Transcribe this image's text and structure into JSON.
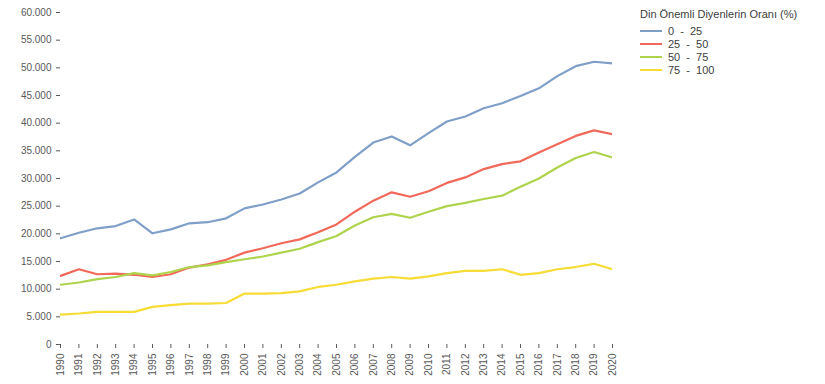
{
  "chart_data": {
    "type": "line",
    "legend_title": "Din Önemli Diyenlerin Oranı (%)",
    "legend": "right",
    "grid": false,
    "x": [
      1990,
      1991,
      1992,
      1993,
      1994,
      1995,
      1996,
      1997,
      1998,
      1999,
      2000,
      2001,
      2002,
      2003,
      2004,
      2005,
      2006,
      2007,
      2008,
      2009,
      2010,
      2011,
      2012,
      2013,
      2014,
      2015,
      2016,
      2017,
      2018,
      2019,
      2020
    ],
    "xlim": [
      1990,
      2020
    ],
    "xticks": [
      1990,
      1991,
      1992,
      1993,
      1994,
      1995,
      1996,
      1997,
      1998,
      1999,
      2000,
      2001,
      2002,
      2003,
      2004,
      2005,
      2006,
      2007,
      2008,
      2009,
      2010,
      2011,
      2012,
      2013,
      2014,
      2015,
      2016,
      2017,
      2018,
      2019,
      2020
    ],
    "ylim": [
      0,
      60000
    ],
    "yticks": [
      0,
      {
        "value": 5000,
        "label": "5.000"
      },
      {
        "value": 10000,
        "label": "10.000"
      },
      {
        "value": 15000,
        "label": "15.000"
      },
      {
        "value": 20000,
        "label": "20.000"
      },
      {
        "value": 25000,
        "label": "25.000"
      },
      {
        "value": 30000,
        "label": "30.000"
      },
      {
        "value": 35000,
        "label": "35.000"
      },
      {
        "value": 40000,
        "label": "40.000"
      },
      {
        "value": 45000,
        "label": "45.000"
      },
      {
        "value": 50000,
        "label": "50.000"
      },
      {
        "value": 55000,
        "label": "55.000"
      },
      {
        "value": 60000,
        "label": "60.000"
      }
    ],
    "series": [
      {
        "name": "0  -  25",
        "color": "#7f9fc9",
        "values": [
          19200,
          20200,
          21000,
          21400,
          22600,
          20100,
          20800,
          21900,
          22100,
          22800,
          24600,
          25300,
          26200,
          27300,
          29300,
          31100,
          33900,
          36500,
          37600,
          36000,
          38200,
          40300,
          41200,
          42700,
          43600,
          44900,
          46300,
          48500,
          50300,
          51100,
          50800
        ]
      },
      {
        "name": "25  -  50",
        "color": "#f0695a",
        "values": [
          12400,
          13600,
          12700,
          12800,
          12600,
          12200,
          12700,
          13900,
          14500,
          15300,
          16600,
          17400,
          18300,
          19000,
          20300,
          21700,
          24000,
          26000,
          27500,
          26700,
          27700,
          29200,
          30200,
          31700,
          32600,
          33100,
          34700,
          36200,
          37700,
          38700,
          38000
        ]
      },
      {
        "name": "50  -  75",
        "color": "#aed34c",
        "values": [
          10800,
          11200,
          11800,
          12200,
          12900,
          12500,
          13100,
          14000,
          14300,
          14900,
          15400,
          15900,
          16600,
          17300,
          18500,
          19600,
          21500,
          23000,
          23600,
          22900,
          24000,
          25000,
          25600,
          26300,
          26900,
          28500,
          30000,
          32000,
          33700,
          34800,
          33800
        ]
      },
      {
        "name": "75  -  100",
        "color": "#f7dc36",
        "values": [
          5400,
          5600,
          5900,
          5900,
          5900,
          6800,
          7100,
          7400,
          7400,
          7500,
          9200,
          9200,
          9300,
          9600,
          10400,
          10800,
          11400,
          11900,
          12200,
          11900,
          12300,
          12900,
          13300,
          13300,
          13600,
          12600,
          12900,
          13600,
          14000,
          14600,
          13600
        ]
      }
    ]
  }
}
